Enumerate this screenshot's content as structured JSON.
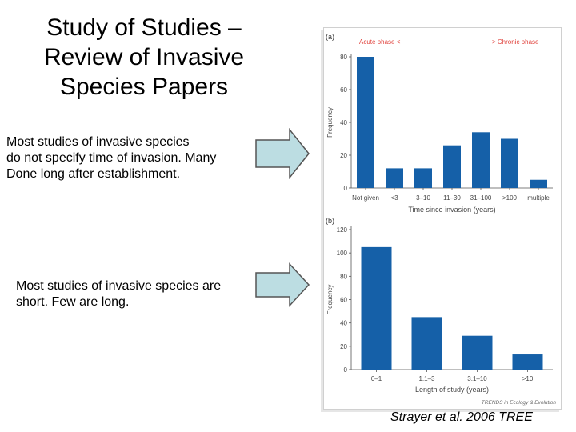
{
  "slide": {
    "title_lines": [
      "Study of Studies –",
      "Review of Invasive",
      "Species Papers"
    ],
    "note1_lines": [
      "Most studies of invasive species",
      "do not specify time of invasion. Many",
      "Done long after establishment."
    ],
    "note2_lines": [
      "Most studies of invasive species are",
      "short.  Few are long."
    ],
    "credit": "Strayer et al. 2006 TREE",
    "arrow_fill": "#bcdde2",
    "arrow_stroke": "#555555"
  },
  "chart_data": [
    {
      "type": "bar",
      "panel_label": "(a)",
      "phase_left": "Acute phase <",
      "phase_right": "> Chronic phase",
      "phase_color": "#e0403a",
      "categories": [
        "Not given",
        "<3",
        "3–10",
        "11–30",
        "31–100",
        ">100",
        "multiple"
      ],
      "values": [
        80,
        12,
        12,
        26,
        34,
        30,
        5
      ],
      "xlabel": "Time since invasion (years)",
      "ylabel": "Frequency",
      "ylim": [
        0,
        80
      ],
      "yticks": [
        0,
        20,
        40,
        60,
        80
      ],
      "bar_color": "#1560a8",
      "grid": false
    },
    {
      "type": "bar",
      "panel_label": "(b)",
      "categories": [
        "0–1",
        "1.1–3",
        "3.1–10",
        ">10"
      ],
      "values": [
        105,
        45,
        29,
        13
      ],
      "xlabel": "Length of study (years)",
      "ylabel": "Frequency",
      "ylim": [
        0,
        120
      ],
      "yticks": [
        0,
        20,
        40,
        60,
        80,
        100,
        120
      ],
      "bar_color": "#1560a8",
      "grid": false,
      "source": "TRENDS in Ecology & Evolution"
    }
  ]
}
